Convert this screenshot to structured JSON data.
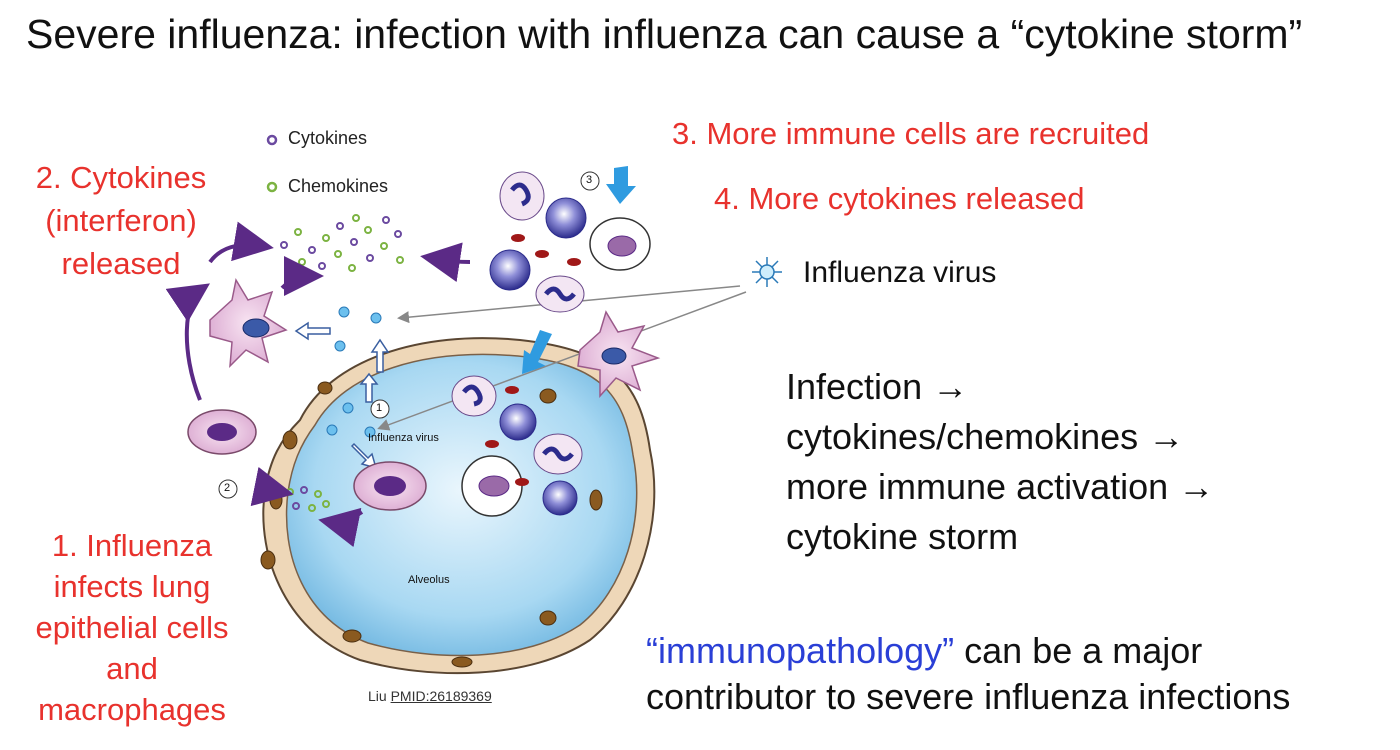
{
  "slide": {
    "title": "Severe influenza: infection with influenza can cause a “cytokine storm”"
  },
  "steps": {
    "step1": "1. Influenza infects lung epithelial cells and macrophages",
    "step2": "2. Cytokines (interferon) released",
    "step3": "3. More immune cells are recruited",
    "step4": "4. More cytokines released"
  },
  "legend": {
    "cytokines": "Cytokines",
    "chemokines": "Chemokines",
    "influenza_virus": "Influenza virus"
  },
  "diagram": {
    "virus_label": "Influenza virus",
    "alveolus_label": "Alveolus",
    "marker_1": "1",
    "marker_2": "2",
    "marker_3": "3"
  },
  "chain": {
    "line1": "Infection →",
    "line2": "cytokines/chemokines →",
    "line3": "more immune activation →",
    "line4": "cytokine storm"
  },
  "conclusion": {
    "term": "“immunopathology”",
    "rest_line1": " can be a major",
    "line2": "contributor to severe influenza infections"
  },
  "citation": {
    "author": "Liu ",
    "pmid": "PMID:26189369"
  },
  "colors": {
    "accent_red": "#e8322d",
    "accent_blue": "#2a3fd6",
    "arrow_purple": "#5b2a86",
    "arrow_blue": "#2f9be0"
  }
}
